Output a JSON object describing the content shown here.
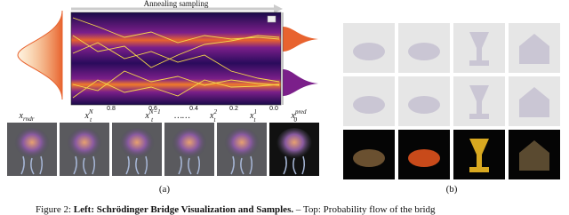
{
  "figure": {
    "panel_a": {
      "arrow_label": "Annealing sampling",
      "time_ticks": [
        "0.8",
        "0.6",
        "0.4",
        "0.2",
        "0.0"
      ],
      "sample_labels": [
        {
          "base": "x",
          "sub": "rndr"
        },
        {
          "base": "x",
          "sub": "t",
          "sup": "N"
        },
        {
          "base": "x",
          "sub": "t",
          "sup": "N−1"
        },
        {
          "base": "……"
        },
        {
          "base": "x",
          "sub": "t",
          "sup": "2"
        },
        {
          "base": "x",
          "sub": "t",
          "sup": "1"
        },
        {
          "base": "x",
          "sub": "0",
          "sup": "pred"
        }
      ],
      "label": "(a)"
    },
    "panel_b": {
      "label": "(b)"
    },
    "caption": {
      "prefix": "Figure 2: ",
      "bold": "Left: Schrödinger Bridge Visualization and Samples.",
      "rest": " – Top: Probability flow of the bridg"
    }
  }
}
